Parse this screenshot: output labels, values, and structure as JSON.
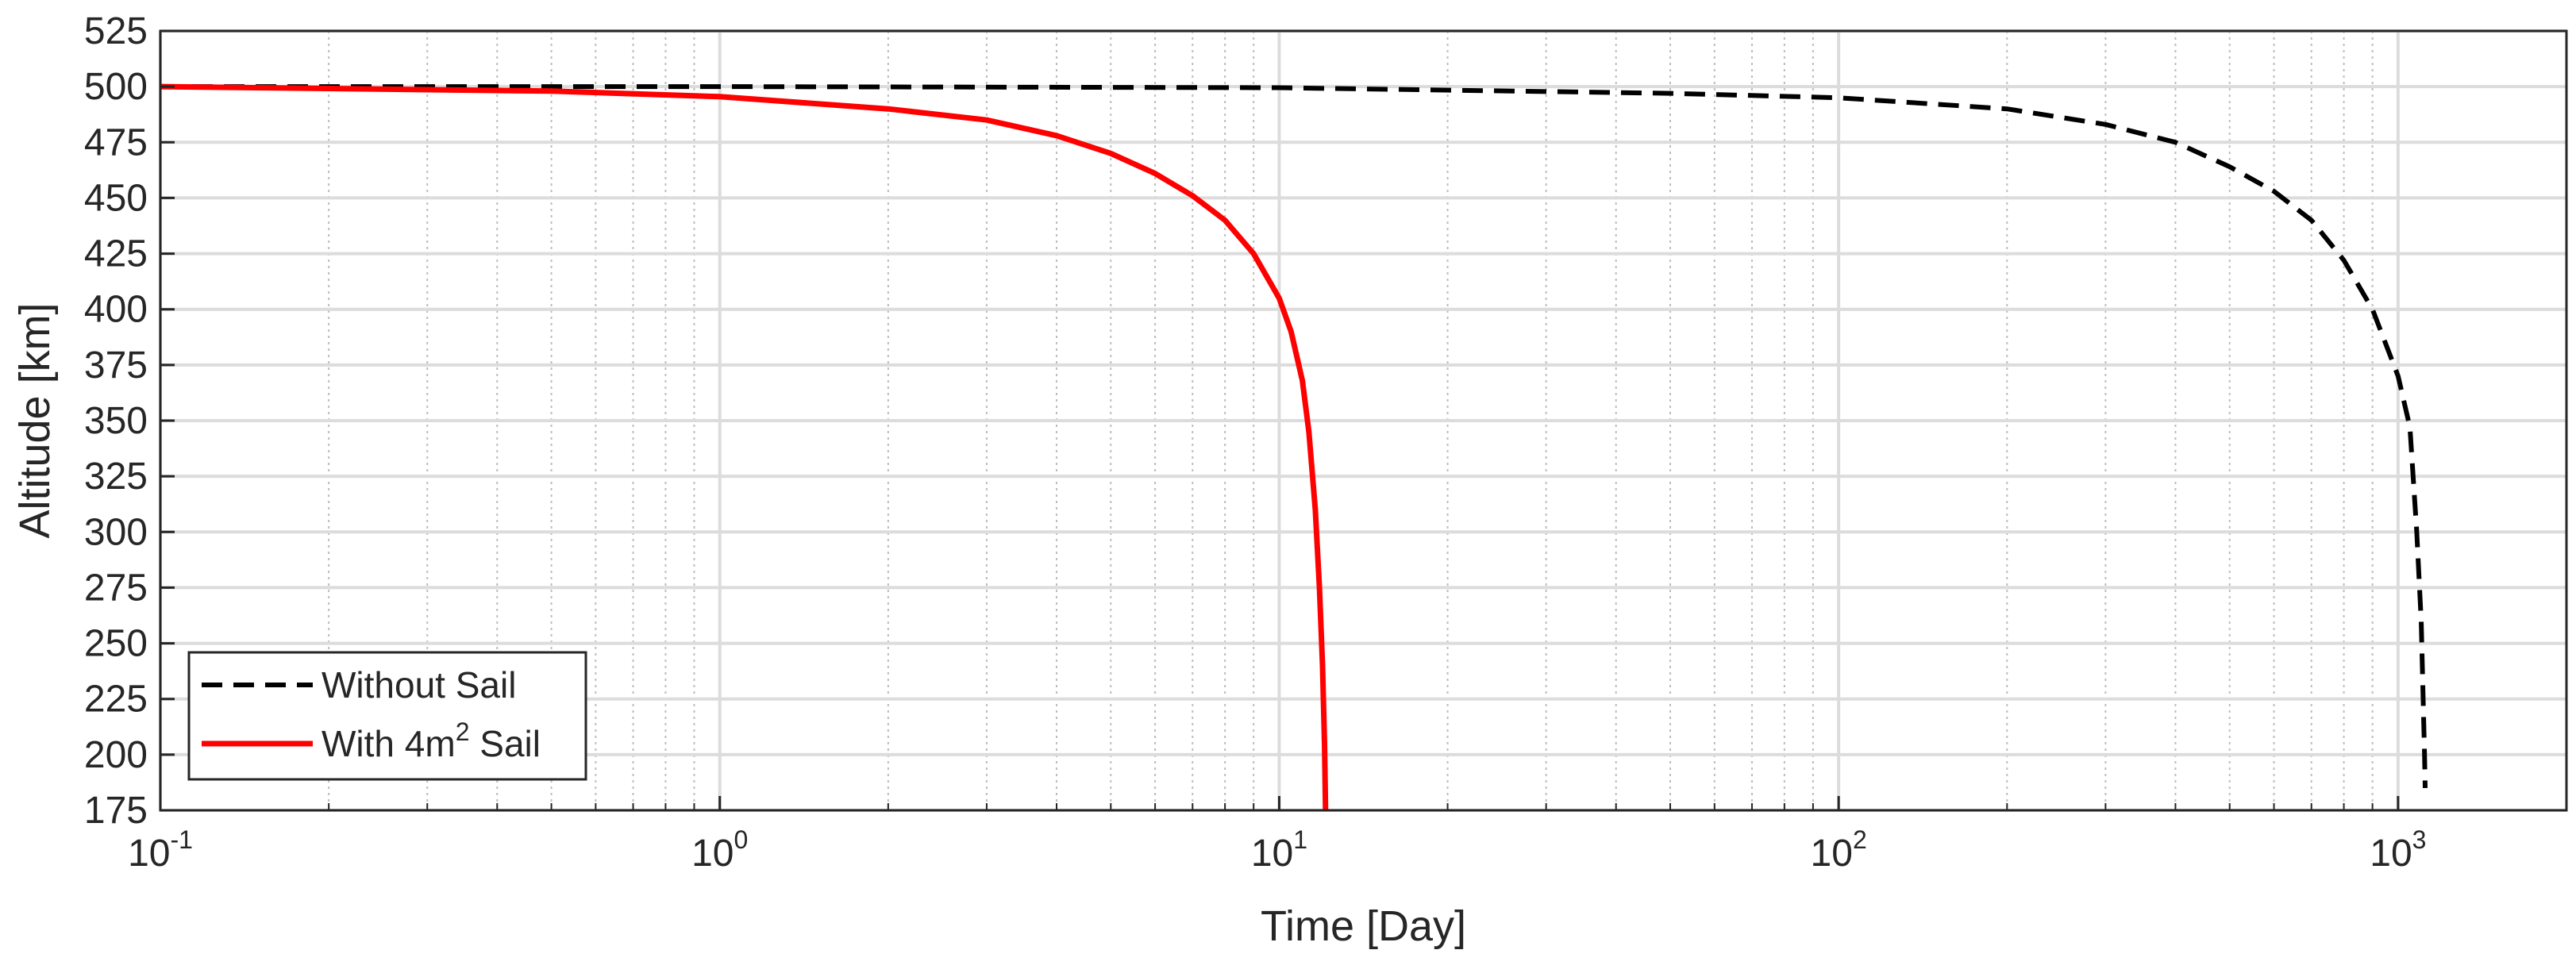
{
  "chart_data": {
    "type": "line",
    "title": "",
    "xlabel": "Time [Day]",
    "ylabel": "Altitude [km]",
    "xscale": "log",
    "xlim": [
      0.1,
      2000
    ],
    "ylim": [
      175,
      525
    ],
    "grid": true,
    "legend_position": "bottom-left",
    "x_ticks": [
      {
        "value": 0.1,
        "base": "10",
        "exp": "-1"
      },
      {
        "value": 1,
        "base": "10",
        "exp": "0"
      },
      {
        "value": 10,
        "base": "10",
        "exp": "1"
      },
      {
        "value": 100,
        "base": "10",
        "exp": "2"
      },
      {
        "value": 1000,
        "base": "10",
        "exp": "3"
      }
    ],
    "y_ticks": [
      175,
      200,
      225,
      250,
      275,
      300,
      325,
      350,
      375,
      400,
      425,
      450,
      475,
      500,
      525
    ],
    "series": [
      {
        "name": "Without Sail",
        "color": "#000000",
        "style": "dashed",
        "x": [
          0.1,
          1,
          10,
          50,
          100,
          200,
          300,
          400,
          500,
          600,
          700,
          800,
          900,
          1000,
          1050,
          1080,
          1100,
          1110,
          1115,
          1118
        ],
        "y": [
          500,
          500,
          499.5,
          497,
          495,
          490,
          483,
          475,
          464,
          453,
          440,
          422,
          400,
          370,
          347,
          300,
          260,
          220,
          200,
          185
        ]
      },
      {
        "name": "With 4m² Sail",
        "color": "#ff0000",
        "style": "solid",
        "x": [
          0.1,
          0.5,
          1,
          2,
          3,
          4,
          5,
          6,
          7,
          8,
          9,
          10,
          10.5,
          11,
          11.3,
          11.6,
          11.8,
          11.95,
          12.05,
          12.1
        ],
        "y": [
          500,
          498,
          495.5,
          490,
          485,
          478,
          470,
          461,
          451,
          440,
          425,
          405,
          390,
          368,
          345,
          310,
          275,
          240,
          205,
          175
        ]
      }
    ]
  },
  "legend": {
    "entries": [
      {
        "label": "Without Sail"
      },
      {
        "label_pre": "With 4m",
        "label_sup": "2",
        "label_post": " Sail"
      }
    ]
  }
}
